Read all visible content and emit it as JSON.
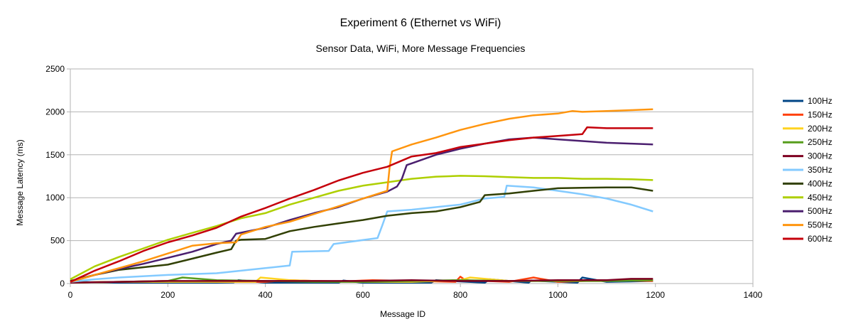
{
  "chart_data": {
    "type": "line",
    "title": "Experiment 6 (Ethernet vs WiFi)",
    "subtitle": "Sensor Data, WiFi, More Message Frequencies",
    "xlabel": "Message ID",
    "ylabel": "Message Latency (ms)",
    "xlim": [
      0,
      1400
    ],
    "ylim": [
      0,
      2500
    ],
    "xticks": [
      0,
      200,
      400,
      600,
      800,
      1000,
      1200,
      1400
    ],
    "yticks": [
      0,
      500,
      1000,
      1500,
      2000,
      2500
    ],
    "grid": "horizontal",
    "legend_position": "right",
    "series": [
      {
        "name": "100Hz",
        "color": "#004586",
        "x": [
          0,
          100,
          300,
          335,
          345,
          400,
          550,
          560,
          600,
          740,
          750,
          850,
          860,
          940,
          945,
          1040,
          1050,
          1100,
          1195
        ],
        "y": [
          20,
          10,
          10,
          15,
          40,
          10,
          10,
          35,
          10,
          10,
          40,
          10,
          50,
          10,
          35,
          10,
          70,
          20,
          30
        ]
      },
      {
        "name": "150Hz",
        "color": "#ff420e",
        "x": [
          0,
          100,
          200,
          300,
          400,
          450,
          500,
          560,
          620,
          700,
          790,
          800,
          810,
          900,
          950,
          1000,
          1100,
          1195
        ],
        "y": [
          10,
          20,
          30,
          20,
          20,
          40,
          30,
          25,
          40,
          30,
          20,
          80,
          40,
          20,
          70,
          20,
          40,
          30
        ]
      },
      {
        "name": "200Hz",
        "color": "#ffd320",
        "x": [
          0,
          100,
          200,
          300,
          380,
          390,
          450,
          500,
          600,
          700,
          800,
          820,
          900,
          1000,
          1100,
          1195
        ],
        "y": [
          10,
          20,
          20,
          20,
          20,
          70,
          40,
          30,
          20,
          20,
          40,
          70,
          30,
          30,
          30,
          40
        ]
      },
      {
        "name": "250Hz",
        "color": "#579d1c",
        "x": [
          0,
          100,
          200,
          230,
          300,
          400,
          500,
          600,
          700,
          800,
          900,
          1000,
          1100,
          1195
        ],
        "y": [
          10,
          20,
          30,
          70,
          40,
          30,
          20,
          20,
          30,
          40,
          30,
          30,
          30,
          40
        ]
      },
      {
        "name": "300Hz",
        "color": "#7e0021",
        "x": [
          0,
          100,
          200,
          300,
          400,
          500,
          600,
          700,
          800,
          900,
          1000,
          1100,
          1150,
          1195
        ],
        "y": [
          10,
          20,
          30,
          30,
          30,
          30,
          30,
          40,
          30,
          30,
          40,
          40,
          55,
          55
        ]
      },
      {
        "name": "350Hz",
        "color": "#83caff",
        "x": [
          0,
          50,
          100,
          200,
          300,
          400,
          450,
          455,
          530,
          540,
          630,
          640,
          650,
          700,
          800,
          850,
          890,
          895,
          950,
          1000,
          1050,
          1100,
          1150,
          1195
        ],
        "y": [
          20,
          50,
          70,
          100,
          120,
          180,
          210,
          370,
          380,
          460,
          530,
          680,
          840,
          860,
          920,
          990,
          1010,
          1140,
          1120,
          1080,
          1040,
          990,
          920,
          840
        ]
      },
      {
        "name": "400Hz",
        "color": "#314004",
        "x": [
          0,
          50,
          100,
          200,
          250,
          300,
          330,
          340,
          350,
          400,
          450,
          500,
          550,
          600,
          650,
          700,
          750,
          800,
          840,
          850,
          900,
          950,
          1000,
          1050,
          1100,
          1150,
          1195
        ],
        "y": [
          30,
          100,
          160,
          220,
          290,
          360,
          400,
          500,
          510,
          520,
          610,
          660,
          700,
          740,
          790,
          820,
          840,
          890,
          950,
          1030,
          1050,
          1080,
          1110,
          1115,
          1120,
          1120,
          1080
        ]
      },
      {
        "name": "450Hz",
        "color": "#aecf00",
        "x": [
          0,
          50,
          100,
          150,
          200,
          250,
          300,
          350,
          400,
          450,
          500,
          550,
          600,
          650,
          700,
          750,
          800,
          850,
          900,
          950,
          1000,
          1050,
          1100,
          1150,
          1195
        ],
        "y": [
          50,
          200,
          310,
          410,
          510,
          590,
          670,
          760,
          820,
          920,
          1000,
          1080,
          1140,
          1180,
          1220,
          1245,
          1255,
          1250,
          1240,
          1230,
          1230,
          1220,
          1220,
          1215,
          1205
        ]
      },
      {
        "name": "500Hz",
        "color": "#4b1f6f",
        "x": [
          0,
          50,
          100,
          150,
          200,
          250,
          300,
          330,
          340,
          400,
          450,
          500,
          550,
          600,
          650,
          670,
          680,
          690,
          700,
          750,
          800,
          850,
          900,
          950,
          1000,
          1050,
          1100,
          1150,
          1195
        ],
        "y": [
          20,
          100,
          170,
          230,
          300,
          370,
          460,
          500,
          580,
          650,
          740,
          820,
          890,
          990,
          1070,
          1130,
          1220,
          1380,
          1400,
          1500,
          1570,
          1630,
          1680,
          1700,
          1680,
          1660,
          1640,
          1630,
          1620
        ]
      },
      {
        "name": "550Hz",
        "color": "#ff950e",
        "x": [
          0,
          50,
          100,
          150,
          200,
          250,
          300,
          340,
          350,
          400,
          450,
          500,
          550,
          600,
          650,
          655,
          660,
          700,
          750,
          800,
          850,
          900,
          950,
          1000,
          1030,
          1050,
          1100,
          1150,
          1195
        ],
        "y": [
          20,
          100,
          180,
          260,
          350,
          440,
          470,
          480,
          570,
          660,
          720,
          810,
          900,
          990,
          1080,
          1360,
          1540,
          1620,
          1700,
          1790,
          1860,
          1920,
          1960,
          1980,
          2010,
          2000,
          2010,
          2020,
          2030
        ]
      },
      {
        "name": "600Hz",
        "color": "#c5000b",
        "x": [
          0,
          50,
          100,
          150,
          200,
          250,
          300,
          350,
          400,
          450,
          500,
          550,
          600,
          650,
          700,
          750,
          800,
          850,
          900,
          950,
          1000,
          1050,
          1060,
          1100,
          1150,
          1195
        ],
        "y": [
          20,
          150,
          260,
          380,
          480,
          560,
          650,
          780,
          880,
          990,
          1090,
          1200,
          1290,
          1360,
          1480,
          1520,
          1590,
          1630,
          1670,
          1700,
          1720,
          1740,
          1820,
          1810,
          1810,
          1810
        ]
      }
    ]
  }
}
